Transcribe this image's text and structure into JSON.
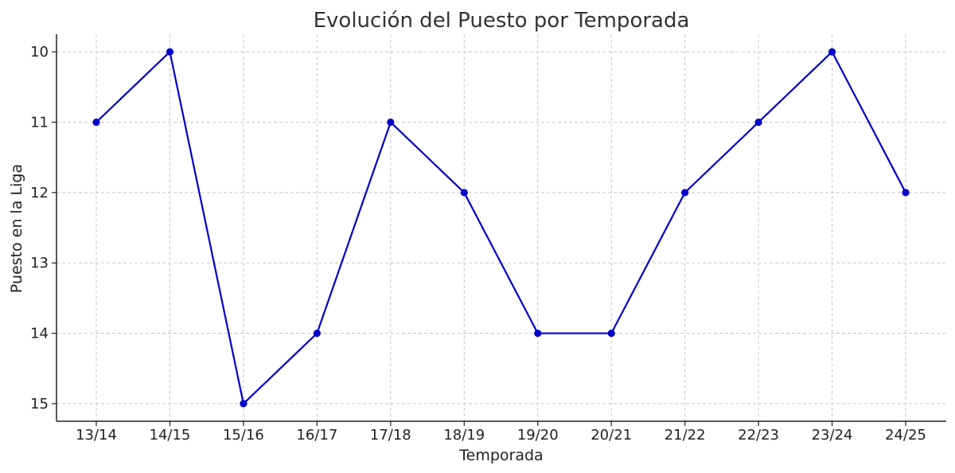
{
  "chart_data": {
    "type": "line",
    "title": "Evolución del Puesto por Temporada",
    "xlabel": "Temporada",
    "ylabel": "Puesto en la Liga",
    "categories": [
      "13/14",
      "14/15",
      "15/16",
      "16/17",
      "17/18",
      "18/19",
      "19/20",
      "20/21",
      "21/22",
      "22/23",
      "23/24",
      "24/25"
    ],
    "series": [
      {
        "values": [
          11,
          10,
          15,
          14,
          11,
          12,
          14,
          14,
          12,
          11,
          10,
          12
        ],
        "color": "#0000cc"
      }
    ],
    "yticks": [
      10,
      11,
      12,
      13,
      14,
      15
    ],
    "ylim": [
      15.25,
      9.75
    ],
    "y_inverted": true,
    "grid": true,
    "marker": "circle"
  }
}
